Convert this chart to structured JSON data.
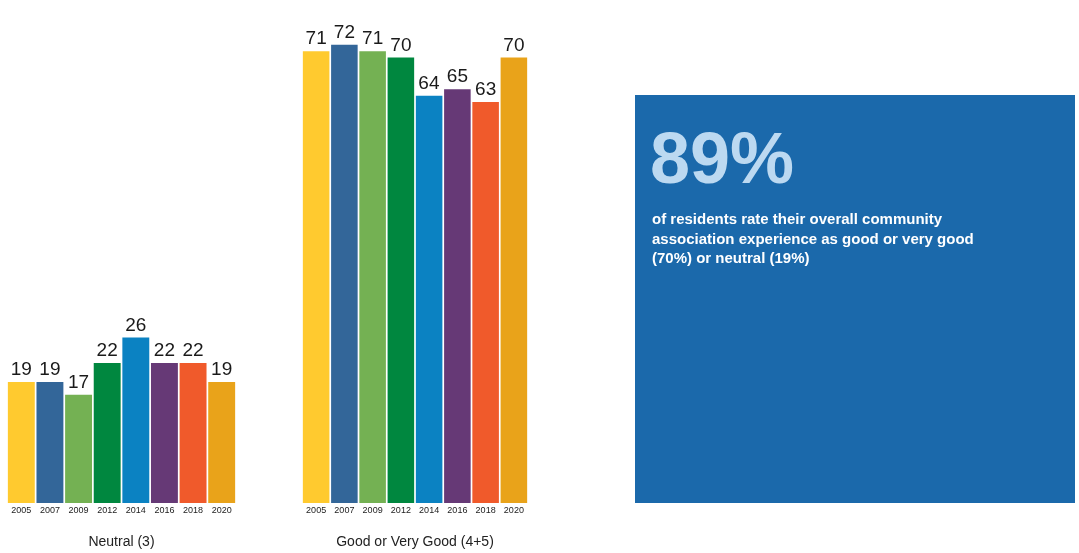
{
  "chart_data": [
    {
      "type": "bar",
      "xlabel": "Neutral (3)",
      "categories": [
        "2005",
        "2007",
        "2009",
        "2012",
        "2014",
        "2016",
        "2018",
        "2020"
      ],
      "values": [
        19,
        19,
        17,
        22,
        26,
        22,
        22,
        19
      ],
      "colors": [
        "#ffca2f",
        "#336699",
        "#74b153",
        "#00873f",
        "#0b82c2",
        "#663976",
        "#f05a2b",
        "#e9a31a"
      ],
      "data_labels": true
    },
    {
      "type": "bar",
      "xlabel": "Good or Very Good (4+5)",
      "categories": [
        "2005",
        "2007",
        "2009",
        "2012",
        "2014",
        "2016",
        "2018",
        "2020"
      ],
      "values": [
        71,
        72,
        71,
        70,
        64,
        65,
        63,
        70
      ],
      "colors": [
        "#ffca2f",
        "#336699",
        "#74b153",
        "#00873f",
        "#0b82c2",
        "#663976",
        "#f05a2b",
        "#e9a31a"
      ],
      "data_labels": true
    },
    {
      "type": "other",
      "annotations": [
        "89%",
        "of residents rate their overall community association experience as good or very good (70%) or neutral (19%)"
      ]
    }
  ]
}
